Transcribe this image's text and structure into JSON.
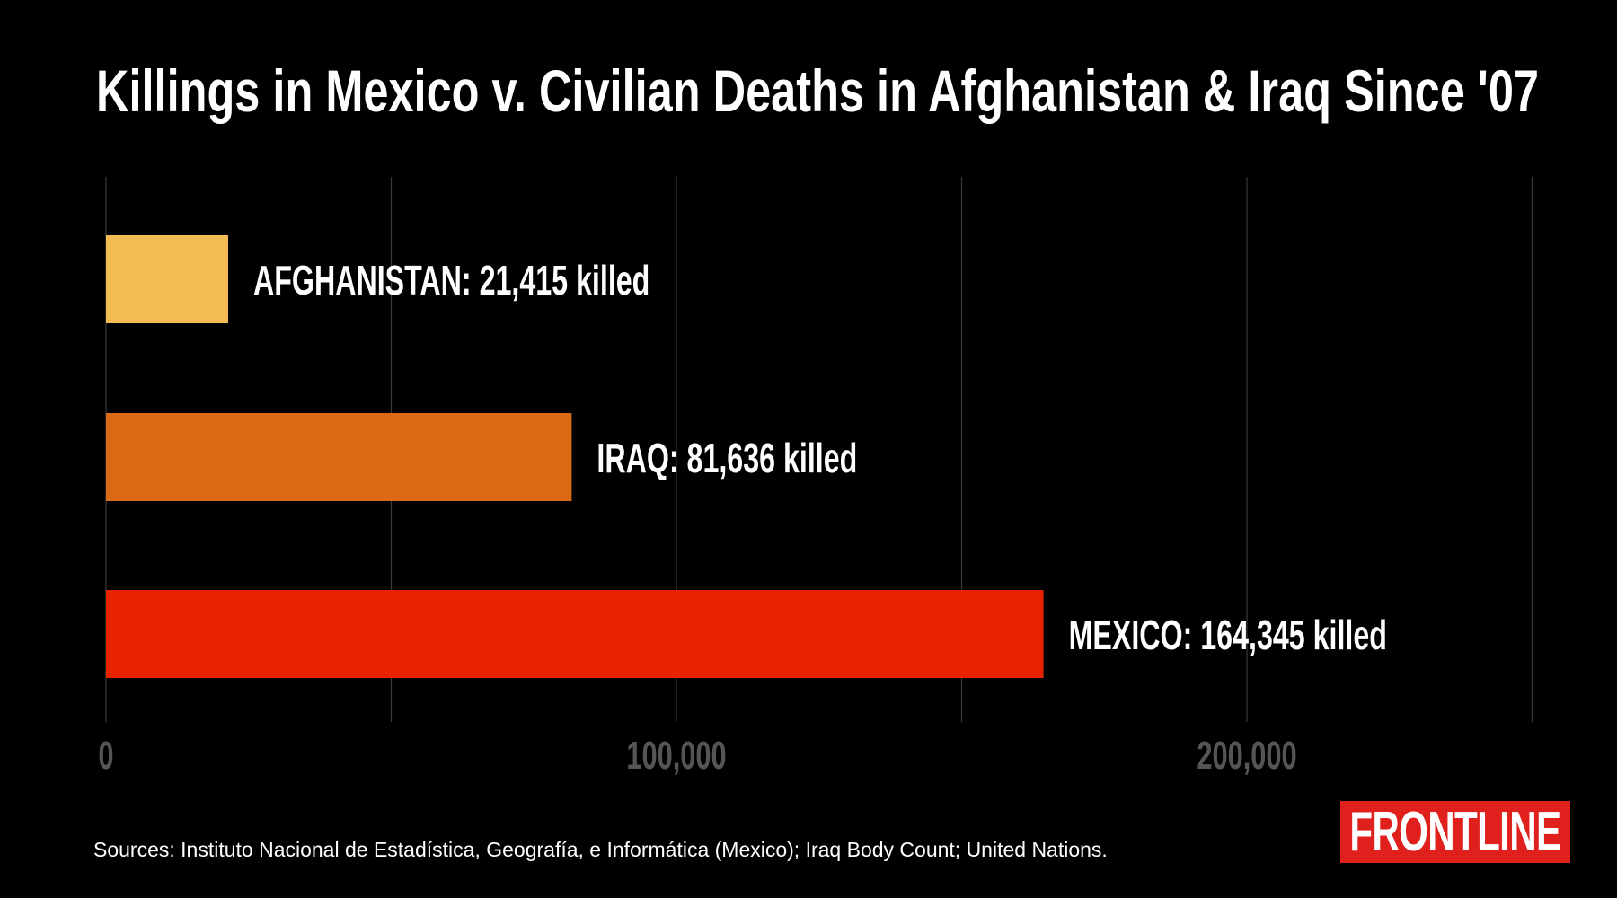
{
  "chart_data": {
    "type": "bar",
    "orientation": "horizontal",
    "title": "Killings in Mexico v. Civilian Deaths in Afghanistan & Iraq Since '07",
    "categories": [
      "AFGHANISTAN",
      "IRAQ",
      "MEXICO"
    ],
    "values": [
      21415,
      81636,
      164345
    ],
    "data_labels": [
      "AFGHANISTAN: 21,415 killed",
      "IRAQ: 81,636 killed",
      "MEXICO: 164,345 killed"
    ],
    "colors": [
      "#f2bc53",
      "#db6a17",
      "#e82203"
    ],
    "xlim": [
      0,
      250000
    ],
    "x_ticks": [
      0,
      100000,
      200000
    ],
    "x_tick_labels": [
      "0",
      "100,000",
      "200,000"
    ],
    "gridlines": [
      0,
      50000,
      100000,
      150000,
      200000,
      250000
    ],
    "grid": true,
    "xlabel": "",
    "ylabel": ""
  },
  "footer": {
    "sources": "Sources: Instituto Nacional de Estadística, Geografía, e Informática (Mexico); Iraq Body Count; United Nations.",
    "logo": "FRONTLINE",
    "logo_color": "#e0201c"
  },
  "background_color": "#000000"
}
